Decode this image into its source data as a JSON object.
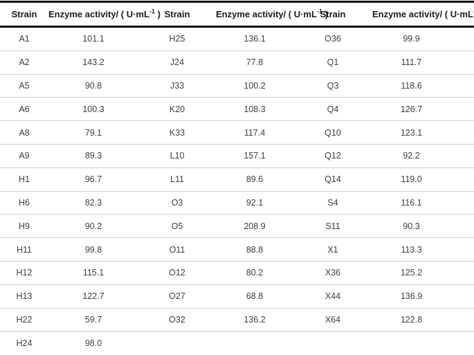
{
  "page": {
    "background_color": "#ffffff",
    "rule_color": "#0d0d0d",
    "separator_color": "#cccccc",
    "header_text_color": "#1a1a1a",
    "body_text_color": "#3d3d3d"
  },
  "table": {
    "header": {
      "strain_label": "Strain",
      "activity_prefix": "Enzyme activity/ ( U·mL",
      "activity_sup": "-1",
      "activity_suffix": " )"
    },
    "rows": [
      {
        "s1": "A1",
        "v1": "101.1",
        "s2": "H25",
        "v2": "136.1",
        "s3": "O36",
        "v3": "99.9"
      },
      {
        "s1": "A2",
        "v1": "143.2",
        "s2": "J24",
        "v2": "77.8",
        "s3": "Q1",
        "v3": "111.7"
      },
      {
        "s1": "A5",
        "v1": "90.8",
        "s2": "J33",
        "v2": "100.2",
        "s3": "Q3",
        "v3": "118.6"
      },
      {
        "s1": "A6",
        "v1": "100.3",
        "s2": "K20",
        "v2": "108.3",
        "s3": "Q4",
        "v3": "126.7"
      },
      {
        "s1": "A8",
        "v1": "79.1",
        "s2": "K33",
        "v2": "117.4",
        "s3": "Q10",
        "v3": "123.1"
      },
      {
        "s1": "A9",
        "v1": "89.3",
        "s2": "L10",
        "v2": "157.1",
        "s3": "Q12",
        "v3": "92.2"
      },
      {
        "s1": "H1",
        "v1": "96.7",
        "s2": "L11",
        "v2": "89.6",
        "s3": "Q14",
        "v3": "119.0"
      },
      {
        "s1": "H6",
        "v1": "82.3",
        "s2": "O3",
        "v2": "92.1",
        "s3": "S4",
        "v3": "116.1"
      },
      {
        "s1": "H9",
        "v1": "90.2",
        "s2": "O5",
        "v2": "208.9",
        "s3": "S11",
        "v3": "90.3"
      },
      {
        "s1": "H11",
        "v1": "99.8",
        "s2": "O11",
        "v2": "88.8",
        "s3": "X1",
        "v3": "113.3"
      },
      {
        "s1": "H12",
        "v1": "115.1",
        "s2": "O12",
        "v2": "80.2",
        "s3": "X36",
        "v3": "125.2"
      },
      {
        "s1": "H13",
        "v1": "122.7",
        "s2": "O27",
        "v2": "68.8",
        "s3": "X44",
        "v3": "136.9"
      },
      {
        "s1": "H22",
        "v1": "59.7",
        "s2": "O32",
        "v2": "136.2",
        "s3": "X64",
        "v3": "122.8"
      },
      {
        "s1": "H24",
        "v1": "98.0",
        "s2": "",
        "v2": "",
        "s3": "",
        "v3": ""
      }
    ]
  }
}
